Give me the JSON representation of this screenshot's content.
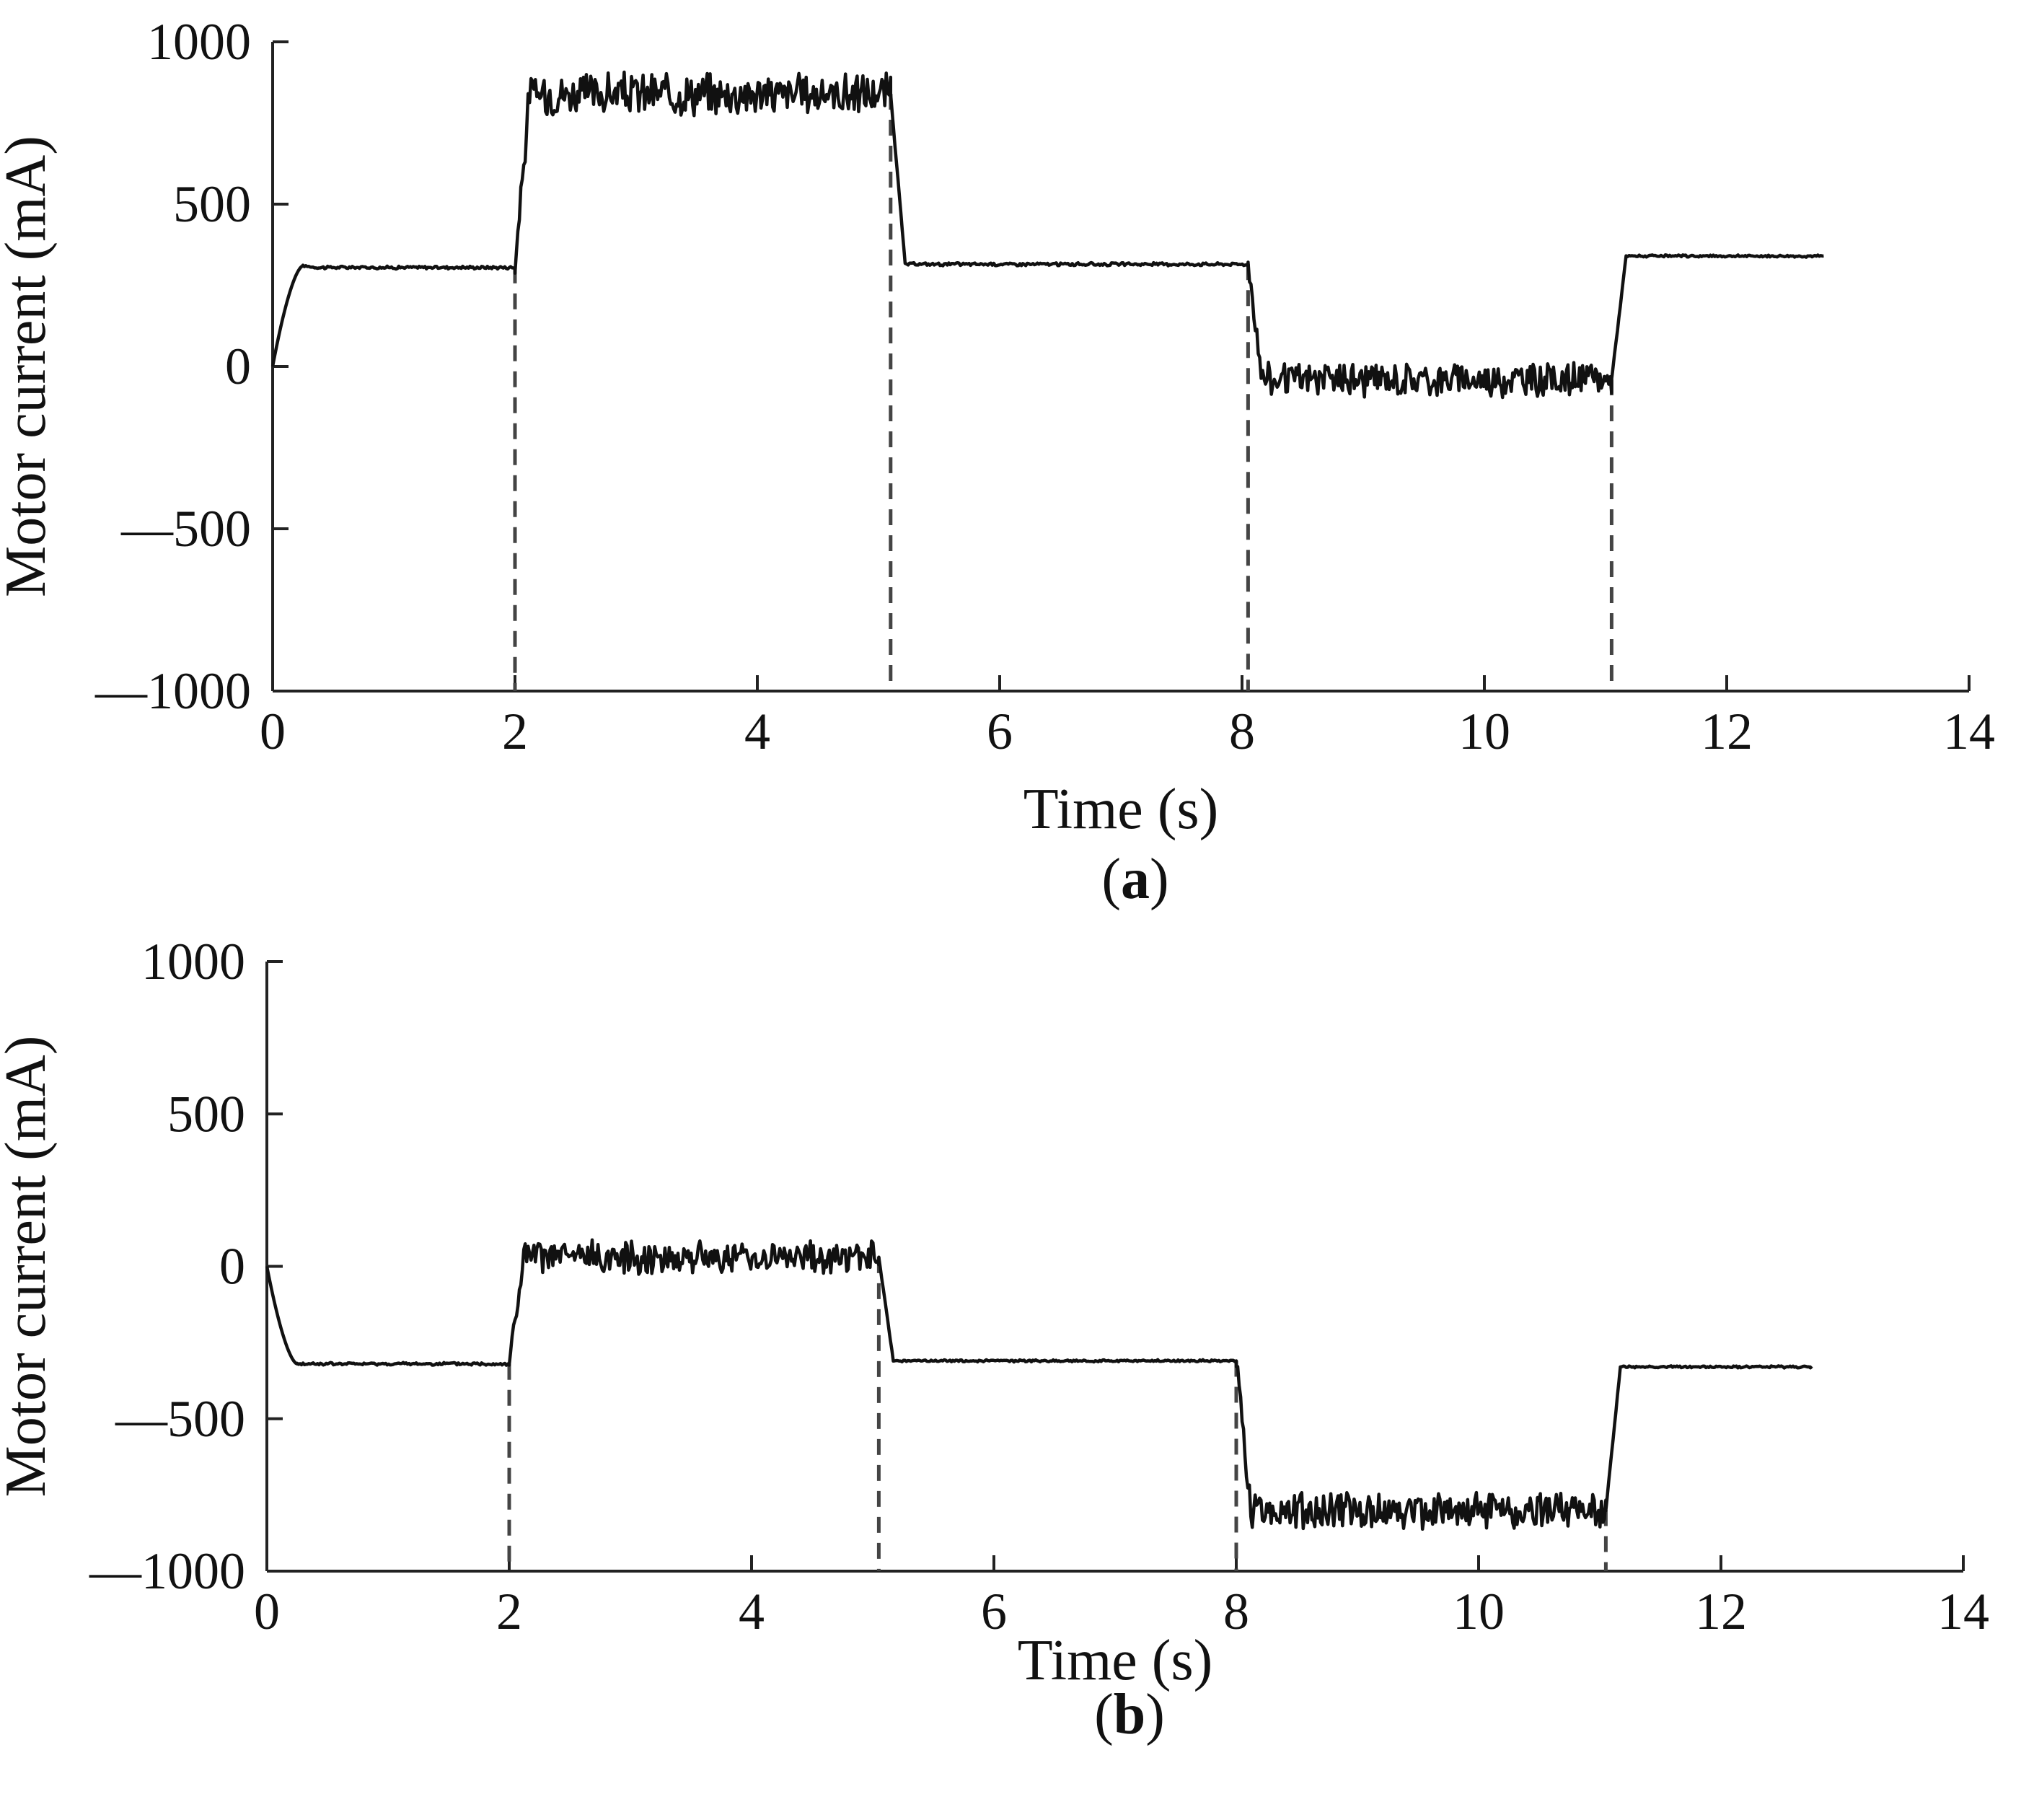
{
  "chart_data": [
    {
      "type": "line",
      "panel": "(a)",
      "panel_letter": "a",
      "xlabel": "Time (s)",
      "ylabel": "Motor current (mA)",
      "xlim": [
        0,
        14
      ],
      "ylim": [
        -1000,
        1000
      ],
      "x_ticks": [
        0,
        2,
        4,
        6,
        8,
        10,
        12,
        14
      ],
      "x_tick_labels": [
        "0",
        "2",
        "4",
        "6",
        "8",
        "10",
        "12",
        "14"
      ],
      "y_ticks": [
        1000,
        500,
        0,
        -500,
        -1000
      ],
      "y_tick_labels": [
        "1000",
        "500",
        "0",
        "—500",
        "—1000"
      ],
      "grid": false,
      "dashed_markers_x": [
        2.0,
        5.1,
        8.05,
        11.05
      ],
      "segments": [
        {
          "t0": 0.0,
          "t1": 0.25,
          "ramp_from": 0,
          "level": 310,
          "noise": 0
        },
        {
          "t0": 0.25,
          "t1": 2.0,
          "level": 305,
          "noise": 4
        },
        {
          "t0": 2.0,
          "t1": 5.1,
          "level": 840,
          "noise": 55
        },
        {
          "t0": 5.1,
          "t1": 8.05,
          "level": 315,
          "noise": 4
        },
        {
          "t0": 8.05,
          "t1": 11.05,
          "level": -40,
          "noise": 45
        },
        {
          "t0": 11.05,
          "t1": 12.8,
          "level": 340,
          "noise": 3
        }
      ],
      "series": [
        {
          "x": [
            0,
            0.1,
            0.2,
            0.3,
            1.0,
            1.9,
            2.0,
            2.1,
            3.0,
            4.0,
            5.0,
            5.1,
            5.3,
            6.0,
            7.0,
            8.0,
            8.05,
            8.2,
            9.0,
            10.0,
            11.0,
            11.05,
            11.2,
            12.0,
            12.8
          ],
          "y": [
            0,
            120,
            250,
            310,
            305,
            305,
            320,
            780,
            850,
            860,
            860,
            820,
            330,
            318,
            315,
            315,
            250,
            -40,
            -50,
            -40,
            -60,
            300,
            340,
            340,
            340
          ]
        }
      ]
    },
    {
      "type": "line",
      "panel": "(b)",
      "panel_letter": "b",
      "xlabel": "Time (s)",
      "ylabel": "Motor current (mA)",
      "xlim": [
        0,
        14
      ],
      "ylim": [
        -1000,
        1000
      ],
      "x_ticks": [
        0,
        2,
        4,
        6,
        8,
        10,
        12,
        14
      ],
      "x_tick_labels": [
        "0",
        "2",
        "4",
        "6",
        "8",
        "10",
        "12",
        "14"
      ],
      "y_ticks": [
        1000,
        500,
        0,
        -500,
        -1000
      ],
      "y_tick_labels": [
        "1000",
        "500",
        "0",
        "—500",
        "—1000"
      ],
      "grid": false,
      "dashed_markers_x": [
        2.0,
        5.05,
        8.0,
        11.05
      ],
      "segments": [
        {
          "t0": 0.0,
          "t1": 0.25,
          "ramp_from": 0,
          "level": -320,
          "noise": 0
        },
        {
          "t0": 0.25,
          "t1": 2.0,
          "level": -320,
          "noise": 4
        },
        {
          "t0": 2.0,
          "t1": 5.05,
          "level": 30,
          "noise": 45
        },
        {
          "t0": 5.05,
          "t1": 8.0,
          "level": -310,
          "noise": 3
        },
        {
          "t0": 8.0,
          "t1": 11.05,
          "level": -800,
          "noise": 50
        },
        {
          "t0": 11.05,
          "t1": 12.75,
          "level": -330,
          "noise": 3
        }
      ],
      "series": [
        {
          "x": [
            0,
            0.1,
            0.2,
            0.3,
            1.0,
            1.9,
            2.0,
            2.1,
            3.0,
            4.0,
            5.0,
            5.05,
            5.2,
            6.0,
            7.0,
            7.9,
            8.0,
            8.2,
            9.0,
            10.0,
            11.0,
            11.05,
            11.2,
            12.0,
            12.75
          ],
          "y": [
            0,
            -150,
            -300,
            -320,
            -320,
            -320,
            -300,
            40,
            30,
            30,
            40,
            -200,
            -310,
            -310,
            -310,
            -310,
            -280,
            -780,
            -800,
            -810,
            -750,
            -290,
            -330,
            -330,
            -330
          ]
        }
      ]
    }
  ]
}
